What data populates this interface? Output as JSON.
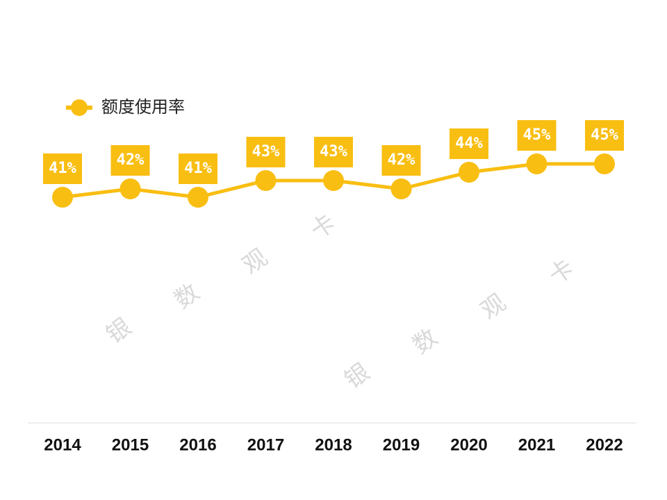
{
  "chart_data": {
    "type": "line",
    "categories": [
      "2014",
      "2015",
      "2016",
      "2017",
      "2018",
      "2019",
      "2020",
      "2021",
      "2022"
    ],
    "series": [
      {
        "name": "额度使用率",
        "color": "#F9BE12",
        "values": [
          41,
          42,
          41,
          43,
          43,
          42,
          44,
          45,
          45
        ],
        "value_labels": [
          "41%",
          "42%",
          "41%",
          "43%",
          "43%",
          "42%",
          "44%",
          "45%",
          "45%"
        ]
      }
    ],
    "legend": "top-left",
    "watermark": [
      "银",
      "数",
      "观",
      "卡"
    ]
  }
}
